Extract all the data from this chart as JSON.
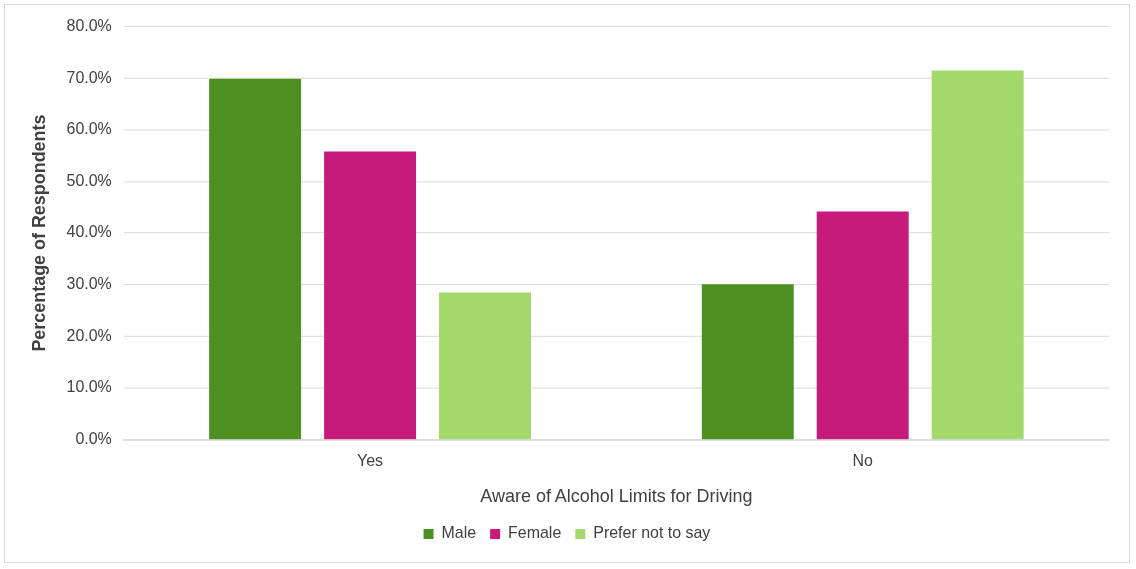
{
  "chart_data": {
    "type": "bar",
    "xlabel": "Aware of Alcohol Limits for Driving",
    "ylabel": "Percentage of Respondents",
    "categories": [
      "Yes",
      "No"
    ],
    "series": [
      {
        "name": "Male",
        "color": "#4e8f22",
        "values": [
          69.9,
          30.1
        ]
      },
      {
        "name": "Female",
        "color": "#c71b7b",
        "values": [
          55.8,
          44.2
        ]
      },
      {
        "name": "Prefer not to say",
        "color": "#a3d86a",
        "values": [
          28.5,
          71.5
        ]
      }
    ],
    "ylim": [
      0,
      80
    ],
    "yticks": [
      {
        "value": 0,
        "label": "0.0%"
      },
      {
        "value": 10,
        "label": "10.0%"
      },
      {
        "value": 20,
        "label": "20.0%"
      },
      {
        "value": 30,
        "label": "30.0%"
      },
      {
        "value": 40,
        "label": "40.0%"
      },
      {
        "value": 50,
        "label": "50.0%"
      },
      {
        "value": 60,
        "label": "60.0%"
      },
      {
        "value": 70,
        "label": "70.0%"
      },
      {
        "value": 80,
        "label": "80.0%"
      }
    ],
    "grid": "y",
    "legend": "bottom"
  }
}
